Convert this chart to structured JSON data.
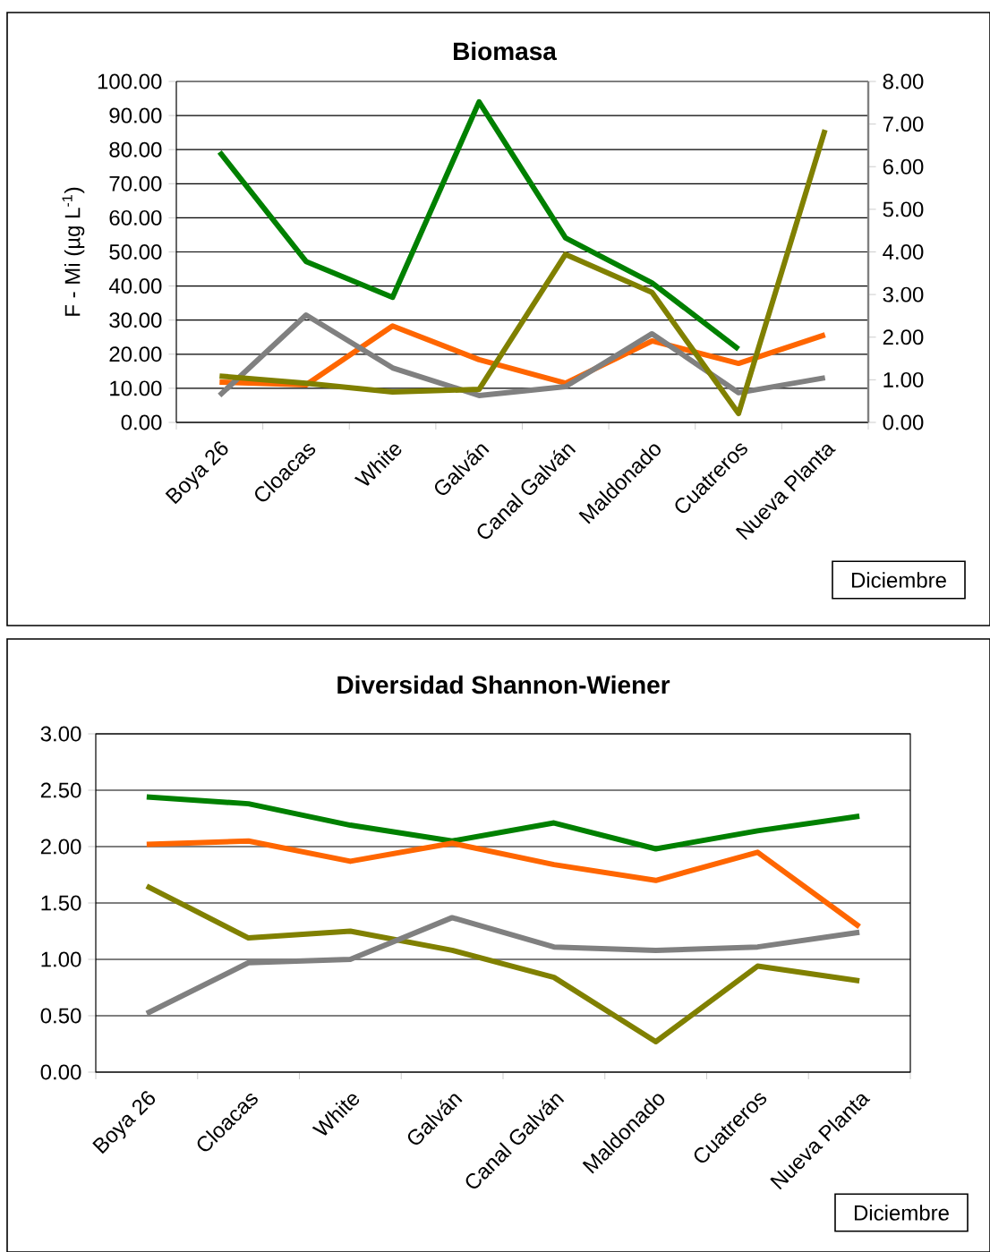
{
  "chart_data": [
    {
      "type": "line",
      "title": "Biomasa",
      "ylabel": "F - Mi  (µg L$^{-1}$)",
      "categories": [
        "Boya 26",
        "Cloacas",
        "White",
        "Galván",
        "Canal Galván",
        "Maldonado",
        "Cuatreros",
        "Nueva Planta"
      ],
      "series": [
        {
          "color": "#008000",
          "values": [
            79.3,
            47.2,
            36.7,
            94.0,
            54.1,
            40.9,
            21.5,
            null
          ]
        },
        {
          "color": "#ff6600",
          "values": [
            11.8,
            11.0,
            28.3,
            18.4,
            11.5,
            23.9,
            17.3,
            25.7
          ]
        },
        {
          "color": "#808080",
          "values": [
            7.9,
            31.5,
            16.0,
            7.9,
            10.5,
            26.0,
            8.7,
            13.1
          ]
        },
        {
          "color": "#808000",
          "values": [
            13.6,
            11.5,
            8.9,
            9.7,
            49.3,
            38.1,
            2.6,
            85.8
          ]
        }
      ],
      "ylim": [
        0,
        100
      ],
      "yticks": [
        {
          "value": 0,
          "label": "0.00"
        },
        {
          "value": 10,
          "label": "10.00"
        },
        {
          "value": 20,
          "label": "20.00"
        },
        {
          "value": 30,
          "label": "30.00"
        },
        {
          "value": 40,
          "label": "40.00"
        },
        {
          "value": 50,
          "label": "50.00"
        },
        {
          "value": 60,
          "label": "60.00"
        },
        {
          "value": 70,
          "label": "70.00"
        },
        {
          "value": 80,
          "label": "80.00"
        },
        {
          "value": 90,
          "label": "90.00"
        },
        {
          "value": 100,
          "label": "100.00"
        }
      ],
      "y2lim": [
        0,
        8
      ],
      "y2ticks": [
        {
          "value": 0,
          "label": "0.00"
        },
        {
          "value": 1,
          "label": "1.00"
        },
        {
          "value": 2,
          "label": "2.00"
        },
        {
          "value": 3,
          "label": "3.00"
        },
        {
          "value": 4,
          "label": "4.00"
        },
        {
          "value": 5,
          "label": "5.00"
        },
        {
          "value": 6,
          "label": "6.00"
        },
        {
          "value": 7,
          "label": "7.00"
        },
        {
          "value": 8,
          "label": "8.00"
        }
      ],
      "grid": "y",
      "marker": "none",
      "annotations": [
        "Diciembre"
      ]
    },
    {
      "type": "line",
      "title": "Diversidad Shannon-Wiener",
      "categories": [
        "Boya 26",
        "Cloacas",
        "White",
        "Galván",
        "Canal Galván",
        "Maldonado",
        "Cuatreros",
        "Nueva Planta"
      ],
      "series": [
        {
          "color": "#008000",
          "values": [
            2.44,
            2.38,
            2.19,
            2.05,
            2.21,
            1.98,
            2.14,
            2.27
          ]
        },
        {
          "color": "#ff6600",
          "values": [
            2.02,
            2.05,
            1.87,
            2.03,
            1.84,
            1.7,
            1.95,
            1.29
          ]
        },
        {
          "color": "#808000",
          "values": [
            1.65,
            1.19,
            1.25,
            1.08,
            0.84,
            0.27,
            0.94,
            0.81
          ]
        },
        {
          "color": "#808080",
          "values": [
            0.52,
            0.97,
            1.0,
            1.37,
            1.11,
            1.08,
            1.11,
            1.24
          ]
        }
      ],
      "ylim": [
        0,
        3
      ],
      "yticks": [
        {
          "value": 0,
          "label": "0.00"
        },
        {
          "value": 0.5,
          "label": "0.50"
        },
        {
          "value": 1,
          "label": "1.00"
        },
        {
          "value": 1.5,
          "label": "1.50"
        },
        {
          "value": 2,
          "label": "2.00"
        },
        {
          "value": 2.5,
          "label": "2.50"
        },
        {
          "value": 3,
          "label": "3.00"
        }
      ],
      "grid": "y",
      "marker": "none",
      "annotations": [
        "Diciembre"
      ]
    }
  ]
}
